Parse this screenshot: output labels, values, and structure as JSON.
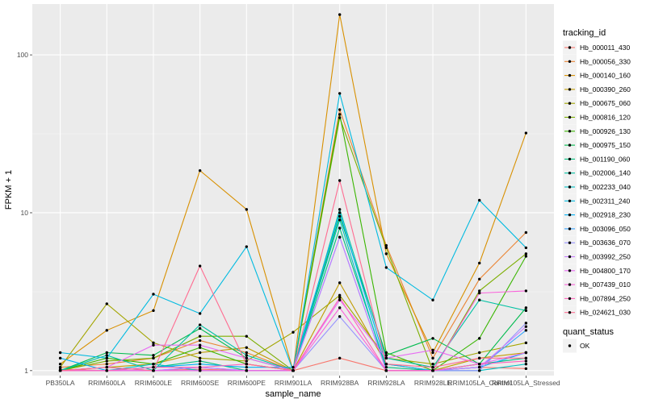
{
  "chart_data": {
    "type": "line",
    "xlabel": "sample_name",
    "ylabel": "FPKM + 1",
    "y_scale": "log10",
    "ylim": [
      0.93,
      210
    ],
    "y_ticks": [
      1,
      10,
      100
    ],
    "y_tick_labels": [
      "1",
      "10",
      "100"
    ],
    "categories": [
      "PB350LA",
      "RRIM600LA",
      "RRIM600LE",
      "RRIM600SE",
      "RRIM600PE",
      "RRIM901LA",
      "RRIM928BA",
      "RRIM928LA",
      "RRIM928LE",
      "RRIM105LA_Control",
      "RRIM105LA_Stressed"
    ],
    "background": "#ebebeb",
    "grid": true,
    "legend": {
      "title": "tracking_id",
      "placement": "right"
    },
    "status_legend": {
      "title": "quant_status",
      "items": [
        "OK"
      ]
    },
    "series": [
      {
        "name": "Hb_000011_430",
        "color": "#F8766D",
        "values": [
          1.02,
          1.0,
          1.0,
          1.02,
          1.0,
          1.0,
          1.2,
          1.0,
          1.0,
          1.05,
          1.03
        ]
      },
      {
        "name": "Hb_000056_330",
        "color": "#EA8331",
        "values": [
          1.05,
          1.1,
          1.2,
          1.55,
          1.3,
          1.0,
          45.0,
          6.2,
          1.2,
          3.8,
          7.5
        ]
      },
      {
        "name": "Hb_000140_160",
        "color": "#D89000",
        "values": [
          1.1,
          1.8,
          2.4,
          18.5,
          10.5,
          1.0,
          180.0,
          5.5,
          1.3,
          4.8,
          32.0
        ]
      },
      {
        "name": "Hb_000390_260",
        "color": "#C09B00",
        "values": [
          1.0,
          1.05,
          1.1,
          1.3,
          1.4,
          1.0,
          3.6,
          1.1,
          1.0,
          1.2,
          1.3
        ]
      },
      {
        "name": "Hb_000675_060",
        "color": "#A3A500",
        "values": [
          1.05,
          2.65,
          1.5,
          1.2,
          1.15,
          1.75,
          3.0,
          1.2,
          1.1,
          1.3,
          1.5
        ]
      },
      {
        "name": "Hb_000816_120",
        "color": "#7CAE00",
        "values": [
          1.0,
          1.15,
          1.2,
          1.65,
          1.65,
          1.0,
          40.0,
          6.0,
          1.0,
          3.2,
          5.5
        ]
      },
      {
        "name": "Hb_000926_130",
        "color": "#39B600",
        "values": [
          1.0,
          1.2,
          1.1,
          1.4,
          1.1,
          1.0,
          42.0,
          1.3,
          1.0,
          1.6,
          5.3
        ]
      },
      {
        "name": "Hb_000975_150",
        "color": "#00BB4E",
        "values": [
          1.0,
          1.3,
          1.25,
          1.85,
          1.2,
          1.0,
          9.5,
          1.25,
          1.6,
          1.1,
          2.5
        ]
      },
      {
        "name": "Hb_001190_060",
        "color": "#00BF7D",
        "values": [
          1.0,
          1.0,
          1.05,
          1.15,
          1.0,
          1.0,
          8.0,
          1.05,
          1.0,
          1.1,
          1.2
        ]
      },
      {
        "name": "Hb_002006_140",
        "color": "#00C1A3",
        "values": [
          1.0,
          1.25,
          1.0,
          1.95,
          1.25,
          1.0,
          10.5,
          1.2,
          1.05,
          2.8,
          2.4
        ]
      },
      {
        "name": "Hb_002233_040",
        "color": "#00BFC4",
        "values": [
          1.0,
          1.0,
          1.1,
          1.0,
          1.0,
          1.0,
          9.0,
          1.0,
          1.0,
          1.0,
          1.1
        ]
      },
      {
        "name": "Hb_002311_240",
        "color": "#00BAE0",
        "values": [
          1.3,
          1.2,
          3.05,
          2.3,
          6.1,
          1.0,
          57.0,
          4.5,
          2.8,
          12.0,
          6.0
        ]
      },
      {
        "name": "Hb_002918_230",
        "color": "#00B0F6",
        "values": [
          1.2,
          1.0,
          1.05,
          1.1,
          1.05,
          1.05,
          10.0,
          1.1,
          1.0,
          1.05,
          1.3
        ]
      },
      {
        "name": "Hb_003096_050",
        "color": "#35A2FF",
        "values": [
          1.0,
          1.05,
          1.0,
          1.05,
          1.0,
          1.0,
          7.0,
          1.0,
          1.0,
          1.05,
          1.8
        ]
      },
      {
        "name": "Hb_003636_070",
        "color": "#9590FF",
        "values": [
          1.0,
          1.0,
          1.0,
          1.0,
          1.0,
          1.0,
          2.2,
          1.0,
          1.0,
          1.0,
          2.0
        ]
      },
      {
        "name": "Hb_003992_250",
        "color": "#C77CFF",
        "values": [
          1.0,
          1.0,
          1.0,
          1.05,
          1.0,
          1.0,
          7.0,
          1.0,
          1.0,
          1.05,
          1.9
        ]
      },
      {
        "name": "Hb_004800_170",
        "color": "#E76BF3",
        "values": [
          1.0,
          1.05,
          1.45,
          1.45,
          1.2,
          1.0,
          2.8,
          1.2,
          1.35,
          1.1,
          1.3
        ]
      },
      {
        "name": "Hb_007439_010",
        "color": "#FA62DB",
        "values": [
          1.0,
          1.0,
          1.0,
          1.0,
          1.0,
          1.0,
          2.5,
          1.0,
          1.0,
          3.1,
          3.2
        ]
      },
      {
        "name": "Hb_007894_250",
        "color": "#FF62BC",
        "values": [
          1.0,
          1.0,
          1.05,
          1.05,
          1.1,
          1.0,
          2.9,
          1.0,
          1.0,
          1.1,
          1.15
        ]
      },
      {
        "name": "Hb_024621_030",
        "color": "#FF6C91",
        "values": [
          1.0,
          1.05,
          1.0,
          4.6,
          1.1,
          1.0,
          16.0,
          1.1,
          1.05,
          1.2,
          1.2
        ]
      }
    ]
  }
}
